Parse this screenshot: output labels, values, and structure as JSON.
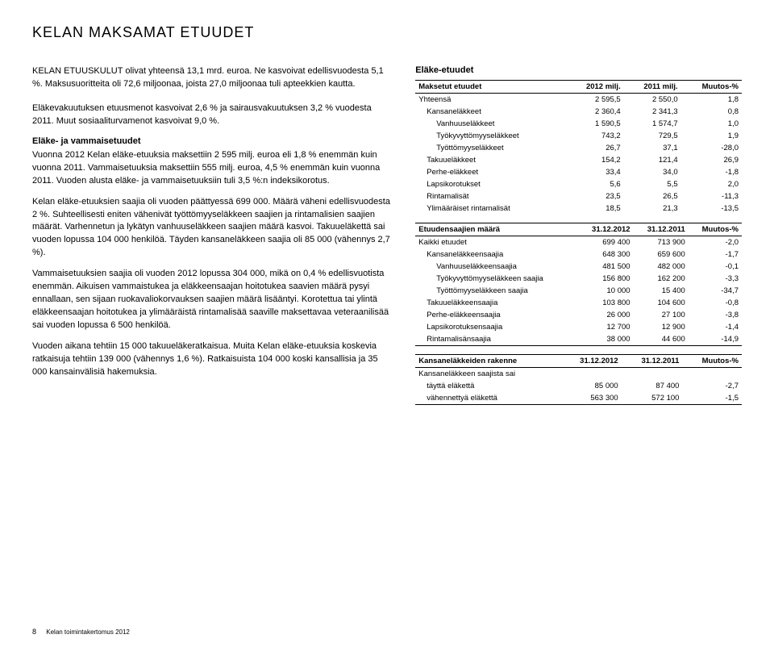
{
  "page_title": "KELAN MAKSAMAT ETUUDET",
  "left": {
    "lead": "KELAN ETUUSKULUT olivat yhteensä 13,1 mrd. euroa. Ne kasvoivat edellisvuodesta 5,1 %. Maksusuoritteita oli 72,6 miljoonaa, joista 27,0 miljoonaa tuli apteekkien kautta.",
    "p1": "Eläkevakuutuksen etuusmenot kasvoivat 2,6 % ja sairausvakuutuksen 3,2 % vuodesta 2011. Muut sosiaaliturvamenot kasvoivat 9,0 %.",
    "sub_heading": "Eläke- ja vammaisetuudet",
    "p2": "Vuonna 2012 Kelan eläke-etuuksia maksettiin 2 595 milj. euroa eli 1,8 % enemmän kuin vuonna 2011. Vammaisetuuksia maksettiin 555 milj. euroa, 4,5 % enemmän kuin vuonna 2011. Vuoden alusta eläke- ja vammaisetuuksiin tuli 3,5 %:n indeksikorotus.",
    "p3": "Kelan eläke-etuuksien saajia oli vuoden päättyessä 699 000. Määrä väheni edellisvuodesta 2 %. Suhteellisesti eniten vähenivät työttömyyseläkkeen saajien ja rintamalisien saajien määrät. Varhennetun ja lykätyn vanhuuseläkkeen saajien määrä kasvoi. Takuueläkettä sai vuoden lopussa 104 000 henkilöä. Täyden kansaneläkkeen saajia oli 85 000 (vähennys 2,7 %).",
    "p4": "Vammaisetuuksien saajia oli vuoden 2012 lopussa 304 000, mikä on 0,4 % edellisvuotista enemmän. Aikuisen vammaistukea ja eläkkeensaajan hoitotukea saavien määrä pysyi ennallaan, sen sijaan ruokavaliokorvauksen saajien määrä lisääntyi. Korotettua tai ylintä eläkkeensaajan hoitotukea ja ylimääräistä rintamalisää saaville maksettavaa veteraanilisää sai vuoden lopussa 6 500 henkilöä.",
    "p5": "Vuoden aikana tehtiin 15 000 takuueläkeratkaisua. Muita Kelan eläke-etuuksia koskevia ratkaisuja tehtiin 139 000 (vähennys 1,6 %). Ratkaisuista 104 000 koski kansallisia ja 35 000 kansainvälisiä hakemuksia."
  },
  "right": {
    "heading": "Eläke-etuudet",
    "t1_cols": [
      "Maksetut etuudet",
      "2012 milj.",
      "2011 milj.",
      "Muutos-%"
    ],
    "t1": [
      {
        "l": "Yhteensä",
        "a": "2 595,5",
        "b": "2 550,0",
        "c": "1,8",
        "i": 0
      },
      {
        "l": "Kansaneläkkeet",
        "a": "2 360,4",
        "b": "2 341,3",
        "c": "0,8",
        "i": 1
      },
      {
        "l": "Vanhuuseläkkeet",
        "a": "1 590,5",
        "b": "1 574,7",
        "c": "1,0",
        "i": 2
      },
      {
        "l": "Työkyvyttömyyseläkkeet",
        "a": "743,2",
        "b": "729,5",
        "c": "1,9",
        "i": 2
      },
      {
        "l": "Työttömyyseläkkeet",
        "a": "26,7",
        "b": "37,1",
        "c": "-28,0",
        "i": 2
      },
      {
        "l": "Takuueläkkeet",
        "a": "154,2",
        "b": "121,4",
        "c": "26,9",
        "i": 1
      },
      {
        "l": "Perhe-eläkkeet",
        "a": "33,4",
        "b": "34,0",
        "c": "-1,8",
        "i": 1
      },
      {
        "l": "Lapsikorotukset",
        "a": "5,6",
        "b": "5,5",
        "c": "2,0",
        "i": 1
      },
      {
        "l": "Rintamalisät",
        "a": "23,5",
        "b": "26,5",
        "c": "-11,3",
        "i": 1
      },
      {
        "l": "Ylimääräiset rintamalisät",
        "a": "18,5",
        "b": "21,3",
        "c": "-13,5",
        "i": 1
      }
    ],
    "t2_cols": [
      "Etuudensaajien määrä",
      "31.12.2012",
      "31.12.2011",
      "Muutos-%"
    ],
    "t2": [
      {
        "l": "Kaikki etuudet",
        "a": "699 400",
        "b": "713 900",
        "c": "-2,0",
        "i": 0
      },
      {
        "l": "Kansaneläkkeensaajia",
        "a": "648 300",
        "b": "659 600",
        "c": "-1,7",
        "i": 1
      },
      {
        "l": "Vanhuuseläkkeensaajia",
        "a": "481 500",
        "b": "482 000",
        "c": "-0,1",
        "i": 2
      },
      {
        "l": "Työkyvyttömyyseläkkeen saajia",
        "a": "156 800",
        "b": "162 200",
        "c": "-3,3",
        "i": 2
      },
      {
        "l": "Työttömyyseläkkeen saajia",
        "a": "10 000",
        "b": "15 400",
        "c": "-34,7",
        "i": 2
      },
      {
        "l": "Takuueläkkeensaajia",
        "a": "103 800",
        "b": "104 600",
        "c": "-0,8",
        "i": 1
      },
      {
        "l": "Perhe-eläkkeensaajia",
        "a": "26 000",
        "b": "27 100",
        "c": "-3,8",
        "i": 1
      },
      {
        "l": "Lapsikorotuksensaajia",
        "a": "12 700",
        "b": "12 900",
        "c": "-1,4",
        "i": 1
      },
      {
        "l": "Rintamalisänsaajia",
        "a": "38 000",
        "b": "44 600",
        "c": "-14,9",
        "i": 1
      }
    ],
    "t3_cols": [
      "Kansaneläkkeiden rakenne",
      "31.12.2012",
      "31.12.2011",
      "Muutos-%"
    ],
    "t3_sub": "Kansaneläkkeen saajista sai",
    "t3": [
      {
        "l": "täyttä eläkettä",
        "a": "85 000",
        "b": "87 400",
        "c": "-2,7",
        "i": 1
      },
      {
        "l": "vähennettyä eläkettä",
        "a": "563 300",
        "b": "572 100",
        "c": "-1,5",
        "i": 1
      }
    ]
  },
  "footer": {
    "page": "8",
    "text": "Kelan toimintakertomus 2012"
  }
}
